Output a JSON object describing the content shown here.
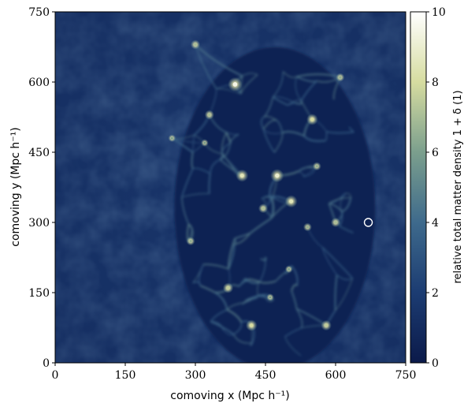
{
  "chart_data": {
    "type": "heatmap",
    "xlabel": "comoving x (Mpc h⁻¹)",
    "ylabel": "comoving y (Mpc h⁻¹)",
    "colorbar_label": "relative total matter density 1 + δ (1)",
    "xlim": [
      0,
      750
    ],
    "ylim": [
      0,
      750
    ],
    "clim": [
      0,
      10
    ],
    "x_ticks": [
      "0",
      "150",
      "300",
      "450",
      "600",
      "750"
    ],
    "y_ticks": [
      "0",
      "150",
      "300",
      "450",
      "600",
      "750"
    ],
    "colorbar_ticks": [
      "0",
      "2",
      "4",
      "6",
      "8",
      "10"
    ],
    "colormap": [
      "#0b1a4a",
      "#1c3c72",
      "#3e6a8c",
      "#7b9f8d",
      "#d6dca0",
      "#ffffff"
    ],
    "background_density": 1.6,
    "void_region": {
      "description": "under-dense ellipse with filamentary web",
      "center": [
        470,
        330
      ],
      "semi_axes": [
        215,
        345
      ],
      "interior_density": 0.4
    },
    "marker": {
      "x": 670,
      "y": 300,
      "shape": "circle"
    },
    "peaks": [
      {
        "x": 385,
        "y": 595,
        "value": 9.5
      },
      {
        "x": 400,
        "y": 400,
        "value": 8.5
      },
      {
        "x": 475,
        "y": 400,
        "value": 9
      },
      {
        "x": 505,
        "y": 345,
        "value": 8.5
      },
      {
        "x": 420,
        "y": 80,
        "value": 8
      },
      {
        "x": 550,
        "y": 520,
        "value": 8
      },
      {
        "x": 370,
        "y": 160,
        "value": 7.5
      },
      {
        "x": 300,
        "y": 680,
        "value": 7
      },
      {
        "x": 580,
        "y": 80,
        "value": 7.5
      },
      {
        "x": 330,
        "y": 530,
        "value": 7
      },
      {
        "x": 600,
        "y": 300,
        "value": 7
      },
      {
        "x": 540,
        "y": 290,
        "value": 6.5
      },
      {
        "x": 290,
        "y": 260,
        "value": 6.5
      },
      {
        "x": 445,
        "y": 330,
        "value": 7
      },
      {
        "x": 610,
        "y": 610,
        "value": 6.5
      },
      {
        "x": 250,
        "y": 480,
        "value": 6
      },
      {
        "x": 320,
        "y": 470,
        "value": 6
      },
      {
        "x": 560,
        "y": 420,
        "value": 6.5
      },
      {
        "x": 500,
        "y": 200,
        "value": 6
      },
      {
        "x": 460,
        "y": 140,
        "value": 6
      }
    ]
  }
}
